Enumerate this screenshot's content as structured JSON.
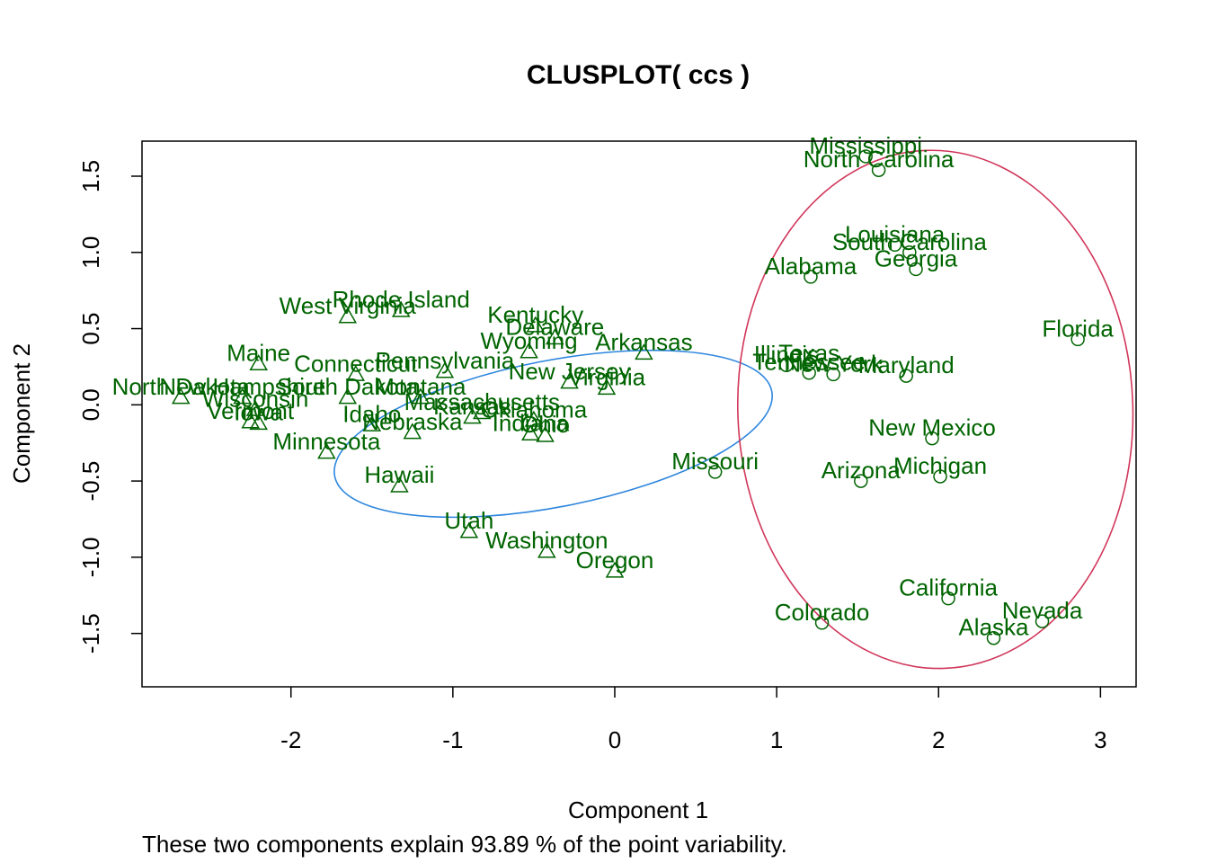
{
  "chart_data": {
    "type": "scatter",
    "title": "CLUSPLOT( ccs )",
    "xlabel": "Component 1",
    "ylabel": "Component 2",
    "subtitle": "These two components explain 93.89 % of the point variability.",
    "xlim": [
      -2.92,
      3.22
    ],
    "ylim": [
      -1.85,
      1.73
    ],
    "x_ticks": [
      -2,
      -1,
      0,
      1,
      2,
      3
    ],
    "x_tick_labels": [
      "-2",
      "-1",
      "0",
      "1",
      "2",
      "3"
    ],
    "y_ticks": [
      -1.5,
      -1.0,
      -0.5,
      0.0,
      0.5,
      1.0,
      1.5
    ],
    "y_tick_labels": [
      "-1.5",
      "-1.0",
      "-0.5",
      "0.0",
      "0.5",
      "1.0",
      "1.5"
    ],
    "grid": false,
    "colors": {
      "labels": "#006400",
      "points": "#006400",
      "cluster1_ellipse": "#2e86de",
      "cluster2_ellipse": "#d1365a",
      "axis": "#000000"
    },
    "clusters": [
      {
        "id": 1,
        "marker": "triangle",
        "ellipse": {
          "cx": -0.38,
          "cy": -0.19,
          "rx": 1.375,
          "ry": 0.48,
          "angle_deg": -11
        },
        "points": [
          {
            "label": "West Virginia",
            "x": -1.65,
            "y": 0.58
          },
          {
            "label": "Rhode Island",
            "x": -1.32,
            "y": 0.62
          },
          {
            "label": "Kentucky",
            "x": -0.49,
            "y": 0.52
          },
          {
            "label": "Delaware",
            "x": -0.37,
            "y": 0.44
          },
          {
            "label": "Wyoming",
            "x": -0.53,
            "y": 0.35
          },
          {
            "label": "Arkansas",
            "x": 0.18,
            "y": 0.34
          },
          {
            "label": "Maine",
            "x": -2.2,
            "y": 0.27
          },
          {
            "label": "Connecticut",
            "x": -1.6,
            "y": 0.2
          },
          {
            "label": "Pennsylvania",
            "x": -1.05,
            "y": 0.22
          },
          {
            "label": "New Jersey",
            "x": -0.28,
            "y": 0.15
          },
          {
            "label": "Virginia",
            "x": -0.05,
            "y": 0.11
          },
          {
            "label": "North Dakota",
            "x": -2.68,
            "y": 0.05
          },
          {
            "label": "New Hampshire",
            "x": -2.3,
            "y": 0.05
          },
          {
            "label": "South Dakota",
            "x": -1.65,
            "y": 0.05
          },
          {
            "label": "Montana",
            "x": -1.2,
            "y": 0.05
          },
          {
            "label": "Wisconsin",
            "x": -2.22,
            "y": -0.03
          },
          {
            "label": "Massachusetts",
            "x": -0.82,
            "y": -0.05
          },
          {
            "label": "Kansas",
            "x": -0.88,
            "y": -0.08
          },
          {
            "label": "Oklahoma",
            "x": -0.5,
            "y": -0.1
          },
          {
            "label": "Vermont",
            "x": -2.25,
            "y": -0.11
          },
          {
            "label": "Iowa",
            "x": -2.2,
            "y": -0.12
          },
          {
            "label": "Idaho",
            "x": -1.5,
            "y": -0.13
          },
          {
            "label": "Nebraska",
            "x": -1.25,
            "y": -0.18
          },
          {
            "label": "Indiana",
            "x": -0.52,
            "y": -0.19
          },
          {
            "label": "Ohio",
            "x": -0.43,
            "y": -0.2
          },
          {
            "label": "Minnesota",
            "x": -1.78,
            "y": -0.31
          },
          {
            "label": "Hawaii",
            "x": -1.33,
            "y": -0.53
          },
          {
            "label": "Utah",
            "x": -0.9,
            "y": -0.83
          },
          {
            "label": "Washington",
            "x": -0.42,
            "y": -0.96
          },
          {
            "label": "Oregon",
            "x": 0.0,
            "y": -1.09
          }
        ]
      },
      {
        "id": 2,
        "marker": "circle",
        "ellipse": {
          "cx": 1.98,
          "cy": -0.03,
          "rx": 1.22,
          "ry": 1.7,
          "angle_deg": -2
        },
        "points": [
          {
            "label": "Mississippi",
            "x": 1.55,
            "y": 1.63
          },
          {
            "label": "North Carolina",
            "x": 1.63,
            "y": 1.54
          },
          {
            "label": "Louisiana",
            "x": 1.73,
            "y": 1.05
          },
          {
            "label": "South Carolina",
            "x": 1.82,
            "y": 1.0
          },
          {
            "label": "Georgia",
            "x": 1.86,
            "y": 0.89
          },
          {
            "label": "Alabama",
            "x": 1.21,
            "y": 0.84
          },
          {
            "label": "Florida",
            "x": 2.86,
            "y": 0.43
          },
          {
            "label": "Texas",
            "x": 1.2,
            "y": 0.27
          },
          {
            "label": "Illinois",
            "x": 1.06,
            "y": 0.26
          },
          {
            "label": "Tennessee",
            "x": 1.2,
            "y": 0.21
          },
          {
            "label": "New York",
            "x": 1.35,
            "y": 0.2
          },
          {
            "label": "Maryland",
            "x": 1.8,
            "y": 0.19
          },
          {
            "label": "New Mexico",
            "x": 1.96,
            "y": -0.22
          },
          {
            "label": "Missouri",
            "x": 0.62,
            "y": -0.44
          },
          {
            "label": "Arizona",
            "x": 1.52,
            "y": -0.5
          },
          {
            "label": "Michigan",
            "x": 2.01,
            "y": -0.47
          },
          {
            "label": "California",
            "x": 2.06,
            "y": -1.27
          },
          {
            "label": "Colorado",
            "x": 1.28,
            "y": -1.43
          },
          {
            "label": "Nevada",
            "x": 2.64,
            "y": -1.42
          },
          {
            "label": "Alaska",
            "x": 2.34,
            "y": -1.53
          }
        ]
      }
    ]
  }
}
